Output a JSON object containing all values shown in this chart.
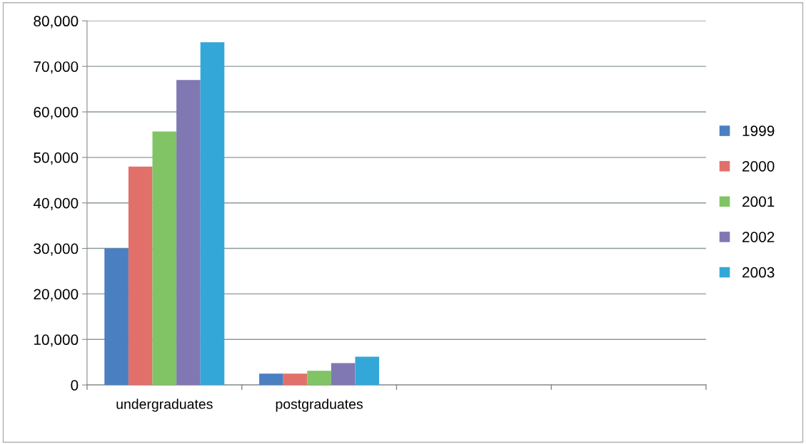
{
  "chart_data": {
    "type": "bar",
    "categories": [
      "undergraduates",
      "postgraduates",
      null,
      null
    ],
    "series": [
      {
        "name": "1999",
        "color": "#4a7fc1",
        "values": [
          30000,
          2500,
          null,
          null
        ]
      },
      {
        "name": "2000",
        "color": "#e2706a",
        "values": [
          48000,
          2500,
          null,
          null
        ]
      },
      {
        "name": "2001",
        "color": "#80c466",
        "values": [
          55700,
          3100,
          null,
          null
        ]
      },
      {
        "name": "2002",
        "color": "#7f78b2",
        "values": [
          67000,
          4800,
          null,
          null
        ]
      },
      {
        "name": "2003",
        "color": "#33a8d8",
        "values": [
          75300,
          6200,
          null,
          null
        ]
      }
    ],
    "ylim": [
      0,
      80000
    ],
    "yticks": [
      {
        "value": 0,
        "label": "0"
      },
      {
        "value": 10000,
        "label": "10,000"
      },
      {
        "value": 20000,
        "label": "20,000"
      },
      {
        "value": 30000,
        "label": "30,000"
      },
      {
        "value": 40000,
        "label": "40,000"
      },
      {
        "value": 50000,
        "label": "50,000"
      },
      {
        "value": 60000,
        "label": "60,000"
      },
      {
        "value": 70000,
        "label": "70,000"
      },
      {
        "value": 80000,
        "label": "80,000"
      }
    ],
    "grid": "y",
    "legend": "right"
  }
}
